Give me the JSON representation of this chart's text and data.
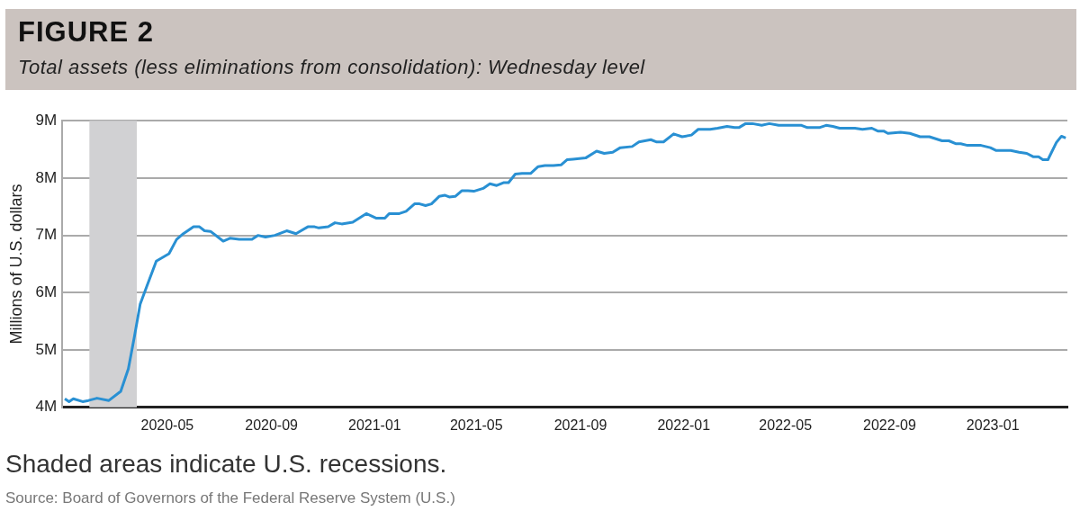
{
  "chart_data": {
    "type": "line",
    "title": "FIGURE 2",
    "subtitle": "Total assets (less eliminations from consolidation): Wednesday level",
    "ylabel": "Millions of U.S. dollars",
    "x": [
      "2020-01-01",
      "2020-01-06",
      "2020-01-11",
      "2020-01-22",
      "2020-01-29",
      "2020-02-08",
      "2020-02-22",
      "2020-03-07",
      "2020-03-16",
      "2020-03-23",
      "2020-03-30",
      "2020-04-07",
      "2020-04-18",
      "2020-05-03",
      "2020-05-12",
      "2020-05-20",
      "2020-06-01",
      "2020-06-08",
      "2020-06-14",
      "2020-06-21",
      "2020-07-06",
      "2020-07-14",
      "2020-07-25",
      "2020-08-09",
      "2020-08-16",
      "2020-08-25",
      "2020-09-05",
      "2020-09-19",
      "2020-09-30",
      "2020-10-14",
      "2020-10-22",
      "2020-10-27",
      "2020-11-07",
      "2020-11-15",
      "2020-11-23",
      "2020-12-06",
      "2020-12-22",
      "2021-01-03",
      "2021-01-13",
      "2021-01-18",
      "2021-01-30",
      "2021-02-07",
      "2021-02-17",
      "2021-02-23",
      "2021-03-02",
      "2021-03-09",
      "2021-03-18",
      "2021-03-25",
      "2021-03-30",
      "2021-04-06",
      "2021-04-14",
      "2021-04-21",
      "2021-04-28",
      "2021-05-09",
      "2021-05-17",
      "2021-05-25",
      "2021-06-02",
      "2021-06-08",
      "2021-06-16",
      "2021-06-24",
      "2021-07-04",
      "2021-07-13",
      "2021-07-21",
      "2021-07-31",
      "2021-08-09",
      "2021-08-16",
      "2021-08-23",
      "2021-09-07",
      "2021-09-20",
      "2021-09-29",
      "2021-10-09",
      "2021-10-18",
      "2021-11-01",
      "2021-11-09",
      "2021-11-23",
      "2021-11-30",
      "2021-12-08",
      "2021-12-20",
      "2021-12-30",
      "2022-01-10",
      "2022-01-18",
      "2022-02-01",
      "2022-02-10",
      "2022-02-21",
      "2022-03-02",
      "2022-03-07",
      "2022-03-15",
      "2022-03-23",
      "2022-04-03",
      "2022-04-12",
      "2022-04-23",
      "2022-05-20",
      "2022-05-27",
      "2022-06-10",
      "2022-06-18",
      "2022-06-26",
      "2022-07-04",
      "2022-07-22",
      "2022-07-31",
      "2022-08-11",
      "2022-08-18",
      "2022-08-25",
      "2022-08-30",
      "2022-09-14",
      "2022-09-25",
      "2022-10-07",
      "2022-10-18",
      "2022-11-02",
      "2022-11-10",
      "2022-11-18",
      "2022-11-24",
      "2022-12-02",
      "2022-12-18",
      "2022-12-29",
      "2023-01-05",
      "2023-01-22",
      "2023-02-01",
      "2023-02-10",
      "2023-02-18",
      "2023-02-24",
      "2023-03-01",
      "2023-03-07",
      "2023-03-17",
      "2023-03-23",
      "2023-03-28"
    ],
    "series": [
      {
        "color": "#2990d3",
        "values": [
          4150000,
          4100000,
          4150000,
          4100000,
          4120000,
          4160000,
          4120000,
          4280000,
          4670000,
          5220000,
          5800000,
          6120000,
          6550000,
          6680000,
          6930000,
          7030000,
          7150000,
          7150000,
          7080000,
          7070000,
          6900000,
          6950000,
          6930000,
          6930000,
          7000000,
          6970000,
          7000000,
          7080000,
          7030000,
          7150000,
          7150000,
          7130000,
          7150000,
          7220000,
          7200000,
          7230000,
          7380000,
          7300000,
          7300000,
          7380000,
          7380000,
          7420000,
          7550000,
          7550000,
          7520000,
          7550000,
          7680000,
          7700000,
          7670000,
          7680000,
          7780000,
          7780000,
          7770000,
          7820000,
          7900000,
          7870000,
          7920000,
          7920000,
          8070000,
          8080000,
          8080000,
          8200000,
          8220000,
          8220000,
          8230000,
          8320000,
          8330000,
          8350000,
          8470000,
          8430000,
          8450000,
          8530000,
          8550000,
          8630000,
          8670000,
          8630000,
          8630000,
          8770000,
          8720000,
          8750000,
          8850000,
          8850000,
          8870000,
          8900000,
          8880000,
          8880000,
          8950000,
          8950000,
          8920000,
          8950000,
          8920000,
          8920000,
          8880000,
          8880000,
          8920000,
          8900000,
          8870000,
          8870000,
          8850000,
          8870000,
          8820000,
          8820000,
          8780000,
          8800000,
          8780000,
          8720000,
          8720000,
          8650000,
          8650000,
          8600000,
          8600000,
          8570000,
          8570000,
          8530000,
          8480000,
          8480000,
          8450000,
          8430000,
          8370000,
          8370000,
          8320000,
          8320000,
          8620000,
          8730000,
          8700000
        ]
      }
    ],
    "xlim": [
      "2019-12-29",
      "2023-03-30"
    ],
    "xticks": [
      "2020-05",
      "2020-09",
      "2021-01",
      "2021-05",
      "2021-09",
      "2022-01",
      "2022-05",
      "2022-09",
      "2023-01"
    ],
    "ylim": [
      4000000,
      9000000
    ],
    "yticks": [
      {
        "value": 4000000,
        "label": "4M"
      },
      {
        "value": 5000000,
        "label": "5M"
      },
      {
        "value": 6000000,
        "label": "6M"
      },
      {
        "value": 7000000,
        "label": "7M"
      },
      {
        "value": 8000000,
        "label": "8M"
      },
      {
        "value": 9000000,
        "label": "9M"
      }
    ],
    "bands": [
      {
        "axis": "x",
        "from": "2020-01-30",
        "to": "2020-03-26",
        "color": "#d1d1d3"
      }
    ],
    "grid": "y",
    "annotations": [
      "Shaded areas indicate U.S. recessions.",
      "Source: Board of Governors of the Federal Reserve System (U.S.)"
    ]
  }
}
